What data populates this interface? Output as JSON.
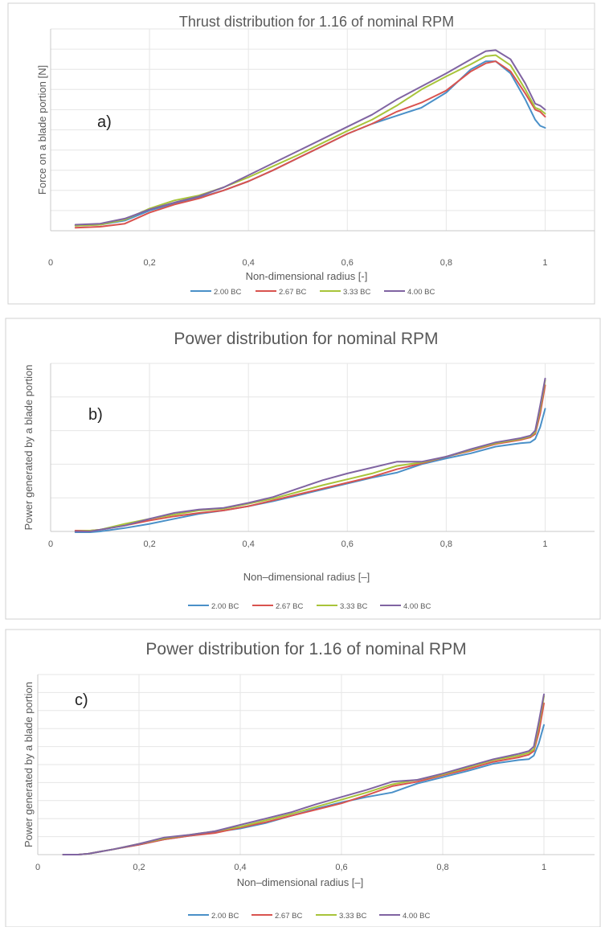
{
  "colors": {
    "series": [
      "#4a90c8",
      "#d9534f",
      "#a8c43a",
      "#8064a2"
    ],
    "grid": "#e6e6e6",
    "axis": "#c8c8c8",
    "text": "#595959",
    "frame": "#d0d0d0"
  },
  "chart_data": [
    {
      "type": "line",
      "title": "Thrust distribution for 1.16 of nominal RPM",
      "panel_label": "a)",
      "xlabel": "Non-dimensional radius [-]",
      "ylabel": "Force on a blade portion [N]",
      "xlim": [
        0,
        1.1
      ],
      "ylim": [
        0,
        100
      ],
      "ytick_values": [
        10,
        20,
        30,
        40,
        50,
        60,
        70,
        80,
        90,
        100
      ],
      "xtick_values": [
        0,
        0.2,
        0.4,
        0.6,
        0.8,
        1
      ],
      "xtick_labels": [
        "0",
        "0,2",
        "0,4",
        "0,6",
        "0,8",
        "1"
      ],
      "series": [
        {
          "name": "2.00 BC",
          "x": [
            0.05,
            0.1,
            0.15,
            0.2,
            0.25,
            0.3,
            0.35,
            0.4,
            0.45,
            0.5,
            0.55,
            0.6,
            0.65,
            0.7,
            0.75,
            0.8,
            0.85,
            0.88,
            0.9,
            0.93,
            0.96,
            0.98,
            0.99,
            1.0
          ],
          "y": [
            2.5,
            3,
            5,
            10,
            13.5,
            16.5,
            20,
            24.5,
            30,
            36,
            42,
            48,
            53,
            57,
            61,
            68.5,
            80,
            84,
            84,
            78,
            65,
            55,
            52,
            51
          ]
        },
        {
          "name": "2.67 BC",
          "x": [
            0.05,
            0.1,
            0.15,
            0.2,
            0.25,
            0.3,
            0.35,
            0.4,
            0.45,
            0.5,
            0.55,
            0.6,
            0.65,
            0.7,
            0.75,
            0.8,
            0.85,
            0.88,
            0.9,
            0.93,
            0.96,
            0.98,
            0.99,
            1.0
          ],
          "y": [
            1.5,
            2,
            3.5,
            9,
            13,
            16,
            20,
            24.5,
            30,
            36,
            42,
            48,
            53,
            59,
            63.5,
            69.5,
            79,
            83,
            84,
            79,
            68,
            60,
            59,
            56.5
          ]
        },
        {
          "name": "3.33 BC",
          "x": [
            0.05,
            0.1,
            0.15,
            0.2,
            0.25,
            0.3,
            0.35,
            0.4,
            0.45,
            0.5,
            0.55,
            0.6,
            0.65,
            0.7,
            0.75,
            0.8,
            0.85,
            0.88,
            0.9,
            0.93,
            0.96,
            0.98,
            0.99,
            1.0
          ],
          "y": [
            2.5,
            3,
            5.5,
            11,
            15,
            17.5,
            21.5,
            26.5,
            32,
            37.5,
            43.5,
            49.5,
            55,
            62,
            70,
            76.5,
            82.5,
            86.5,
            87,
            82,
            70,
            61,
            60,
            58
          ]
        },
        {
          "name": "4.00 BC",
          "x": [
            0.05,
            0.1,
            0.15,
            0.2,
            0.25,
            0.3,
            0.35,
            0.4,
            0.45,
            0.5,
            0.55,
            0.6,
            0.65,
            0.7,
            0.75,
            0.8,
            0.85,
            0.88,
            0.9,
            0.93,
            0.96,
            0.98,
            0.99,
            1.0
          ],
          "y": [
            3,
            3.5,
            6,
            10.5,
            14,
            17,
            21.5,
            27.5,
            33.5,
            39.5,
            45.5,
            51.5,
            57.5,
            65,
            71.5,
            78,
            85,
            89,
            89.5,
            85,
            73,
            63,
            62,
            60
          ]
        }
      ]
    },
    {
      "type": "line",
      "title": "Power distribution for nominal RPM",
      "panel_label": "b)",
      "xlabel": "Non–dimensional radius [–]",
      "ylabel": "Power generated by a blade portion",
      "xlim": [
        0,
        1.1
      ],
      "ylim": [
        -5,
        100
      ],
      "ytick_values": [
        0,
        20,
        40,
        60,
        80,
        100
      ],
      "xtick_values": [
        0,
        0.2,
        0.4,
        0.6,
        0.8,
        1
      ],
      "xtick_labels": [
        "0",
        "0,2",
        "0,4",
        "0,6",
        "0,8",
        "1"
      ],
      "series": [
        {
          "name": "2.00 BC",
          "x": [
            0.05,
            0.08,
            0.1,
            0.15,
            0.2,
            0.25,
            0.3,
            0.35,
            0.4,
            0.45,
            0.5,
            0.55,
            0.6,
            0.65,
            0.7,
            0.75,
            0.8,
            0.85,
            0.9,
            0.95,
            0.97,
            0.98,
            0.99,
            1.0
          ],
          "y": [
            -0.5,
            -0.5,
            0,
            2,
            4.5,
            7.5,
            10.5,
            12.5,
            15,
            18,
            21.5,
            25,
            28.5,
            32,
            35,
            40,
            43.5,
            46.5,
            50.5,
            52.5,
            53,
            55,
            62,
            73
          ]
        },
        {
          "name": "2.67 BC",
          "x": [
            0.05,
            0.08,
            0.1,
            0.15,
            0.2,
            0.25,
            0.3,
            0.35,
            0.4,
            0.45,
            0.5,
            0.55,
            0.6,
            0.65,
            0.7,
            0.75,
            0.8,
            0.85,
            0.9,
            0.95,
            0.97,
            0.98,
            0.99,
            1.0
          ],
          "y": [
            0.5,
            0.5,
            1,
            3.5,
            6.5,
            9,
            11,
            12.5,
            15,
            18.5,
            22,
            25.5,
            29,
            32.5,
            37,
            40.5,
            44.5,
            48,
            52,
            54.5,
            56,
            58,
            70,
            87
          ]
        },
        {
          "name": "3.33 BC",
          "x": [
            0.05,
            0.08,
            0.1,
            0.15,
            0.2,
            0.25,
            0.3,
            0.35,
            0.4,
            0.45,
            0.5,
            0.55,
            0.6,
            0.65,
            0.7,
            0.75,
            0.8,
            0.85,
            0.9,
            0.95,
            0.97,
            0.98,
            0.99,
            1.0
          ],
          "y": [
            0,
            0.5,
            1,
            4.5,
            7.5,
            10,
            12.5,
            13.5,
            16.5,
            19.5,
            23.5,
            27.5,
            31,
            34.5,
            39,
            41,
            44.5,
            48.5,
            52.5,
            55,
            56.5,
            59,
            73,
            90
          ]
        },
        {
          "name": "4.00 BC",
          "x": [
            0.05,
            0.08,
            0.1,
            0.15,
            0.2,
            0.25,
            0.3,
            0.35,
            0.4,
            0.45,
            0.5,
            0.55,
            0.6,
            0.65,
            0.7,
            0.75,
            0.8,
            0.85,
            0.9,
            0.95,
            0.97,
            0.98,
            0.99,
            1.0
          ],
          "y": [
            0,
            0,
            1,
            3.5,
            7.5,
            11,
            13,
            14,
            17,
            20.5,
            25.5,
            30.5,
            34.5,
            38,
            41.5,
            41.5,
            44.5,
            49,
            53,
            55.5,
            57,
            60,
            75,
            91
          ]
        }
      ]
    },
    {
      "type": "line",
      "title": "Power distribution for 1.16 of nominal RPM",
      "panel_label": "c)",
      "xlabel": "Non–dimensional radius [–]",
      "ylabel": "Power generated by a blade portion",
      "xlim": [
        0,
        1.1
      ],
      "ylim": [
        -5,
        100
      ],
      "ytick_values": [
        10,
        20,
        30,
        40,
        50,
        60,
        70,
        80,
        90,
        100
      ],
      "xtick_values": [
        0,
        0.2,
        0.4,
        0.6,
        0.8,
        1
      ],
      "xtick_labels": [
        "0",
        "0,2",
        "0,4",
        "0,6",
        "0,8",
        "1"
      ],
      "series": [
        {
          "name": "2.00 BC",
          "x": [
            0.05,
            0.08,
            0.1,
            0.15,
            0.2,
            0.25,
            0.3,
            0.35,
            0.4,
            0.45,
            0.5,
            0.55,
            0.6,
            0.65,
            0.7,
            0.75,
            0.8,
            0.85,
            0.9,
            0.95,
            0.97,
            0.98,
            0.99,
            1.0
          ],
          "y": [
            0,
            0,
            0.5,
            3,
            5.5,
            8.5,
            10.5,
            12.5,
            14.5,
            17.5,
            21.5,
            25.5,
            29,
            32,
            34.5,
            39.5,
            43,
            46.5,
            50.5,
            52.5,
            53,
            55,
            62,
            72
          ]
        },
        {
          "name": "2.67 BC",
          "x": [
            0.05,
            0.08,
            0.1,
            0.15,
            0.2,
            0.25,
            0.3,
            0.35,
            0.4,
            0.45,
            0.5,
            0.55,
            0.6,
            0.65,
            0.7,
            0.75,
            0.8,
            0.85,
            0.9,
            0.95,
            0.97,
            0.98,
            0.99,
            1.0
          ],
          "y": [
            0,
            0,
            0.5,
            3,
            5.5,
            8.5,
            10.5,
            12,
            15,
            18,
            21.5,
            25,
            28.5,
            33,
            38,
            40.5,
            44,
            47.5,
            51.5,
            54,
            55.5,
            57.5,
            68,
            84
          ]
        },
        {
          "name": "3.33 BC",
          "x": [
            0.05,
            0.08,
            0.1,
            0.15,
            0.2,
            0.25,
            0.3,
            0.35,
            0.4,
            0.45,
            0.5,
            0.55,
            0.6,
            0.65,
            0.7,
            0.75,
            0.8,
            0.85,
            0.9,
            0.95,
            0.97,
            0.98,
            0.99,
            1.0
          ],
          "y": [
            0,
            0,
            0.5,
            3,
            6,
            9,
            11,
            13,
            15.5,
            19,
            22.5,
            26.5,
            30.5,
            34.5,
            39,
            41.5,
            44.5,
            48.5,
            52.5,
            55,
            56.5,
            58.5,
            72,
            88
          ]
        },
        {
          "name": "4.00 BC",
          "x": [
            0.05,
            0.08,
            0.1,
            0.15,
            0.2,
            0.25,
            0.3,
            0.35,
            0.4,
            0.45,
            0.5,
            0.55,
            0.6,
            0.65,
            0.7,
            0.75,
            0.8,
            0.85,
            0.9,
            0.95,
            0.97,
            0.98,
            0.99,
            1.0
          ],
          "y": [
            0,
            0,
            0.5,
            3,
            6,
            9.5,
            11,
            13,
            16.5,
            20,
            23.5,
            28,
            32,
            36,
            40.5,
            41.5,
            45,
            49,
            53,
            56,
            57.5,
            60,
            74,
            89
          ]
        }
      ]
    }
  ]
}
